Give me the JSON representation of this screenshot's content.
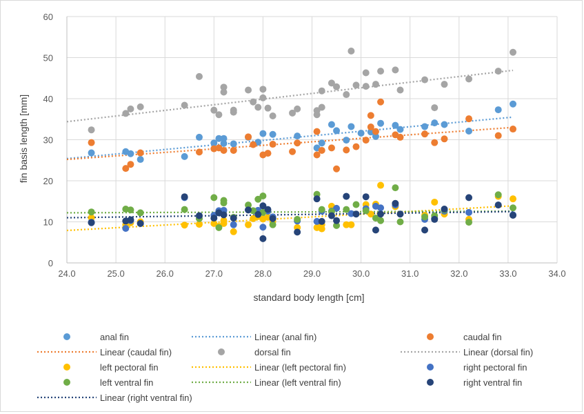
{
  "chart_data": {
    "type": "scatter",
    "title": "",
    "xlabel": "standard body length [cm]",
    "ylabel": "fin basis length [mm]",
    "xlim": [
      24.0,
      34.0
    ],
    "ylim": [
      0,
      60
    ],
    "xticks": [
      "24.0",
      "25.0",
      "26.0",
      "27.0",
      "28.0",
      "29.0",
      "30.0",
      "31.0",
      "32.0",
      "33.0",
      "34.0"
    ],
    "yticks": [
      "0",
      "10",
      "20",
      "30",
      "40",
      "50",
      "60"
    ],
    "grid": true,
    "legend_position": "bottom",
    "series": [
      {
        "name": "anal fin",
        "color": "#5b9bd5",
        "points": [
          [
            24.5,
            26.8
          ],
          [
            25.2,
            27.1
          ],
          [
            25.3,
            26.6
          ],
          [
            25.5,
            25.2
          ],
          [
            26.4,
            25.9
          ],
          [
            26.7,
            30.6
          ],
          [
            27.0,
            29.2
          ],
          [
            27.1,
            30.3
          ],
          [
            27.2,
            30.3
          ],
          [
            27.2,
            29.1
          ],
          [
            27.4,
            29.0
          ],
          [
            27.7,
            30.6
          ],
          [
            27.9,
            29.4
          ],
          [
            28.0,
            31.5
          ],
          [
            28.2,
            31.3
          ],
          [
            28.7,
            30.9
          ],
          [
            29.1,
            28.0
          ],
          [
            29.2,
            29.2
          ],
          [
            29.4,
            33.7
          ],
          [
            29.5,
            32.2
          ],
          [
            29.7,
            29.9
          ],
          [
            29.8,
            33.2
          ],
          [
            30.0,
            31.6
          ],
          [
            30.2,
            31.9
          ],
          [
            30.3,
            30.8
          ],
          [
            30.4,
            34.0
          ],
          [
            30.7,
            33.5
          ],
          [
            30.8,
            32.5
          ],
          [
            31.3,
            33.2
          ],
          [
            31.5,
            34.1
          ],
          [
            31.7,
            33.7
          ],
          [
            32.2,
            32.1
          ],
          [
            32.8,
            37.3
          ],
          [
            33.1,
            38.7
          ]
        ]
      },
      {
        "name": "caudal fin",
        "color": "#ed7d31",
        "points": [
          [
            24.5,
            29.3
          ],
          [
            25.2,
            23.0
          ],
          [
            25.3,
            24.0
          ],
          [
            25.5,
            26.8
          ],
          [
            26.7,
            27.0
          ],
          [
            27.0,
            27.8
          ],
          [
            27.1,
            28.0
          ],
          [
            27.2,
            27.4
          ],
          [
            27.4,
            27.4
          ],
          [
            27.7,
            30.7
          ],
          [
            27.8,
            28.8
          ],
          [
            28.0,
            26.3
          ],
          [
            28.1,
            26.7
          ],
          [
            28.2,
            28.9
          ],
          [
            28.6,
            27.1
          ],
          [
            28.7,
            29.2
          ],
          [
            29.1,
            32.0
          ],
          [
            29.1,
            26.3
          ],
          [
            29.2,
            27.4
          ],
          [
            29.4,
            28.0
          ],
          [
            29.5,
            22.9
          ],
          [
            29.7,
            27.5
          ],
          [
            29.9,
            28.3
          ],
          [
            30.1,
            29.9
          ],
          [
            30.2,
            35.9
          ],
          [
            30.2,
            33.1
          ],
          [
            30.3,
            32.0
          ],
          [
            30.4,
            39.2
          ],
          [
            30.7,
            31.2
          ],
          [
            30.8,
            30.6
          ],
          [
            31.3,
            31.4
          ],
          [
            31.5,
            29.3
          ],
          [
            31.7,
            30.2
          ],
          [
            32.2,
            35.1
          ],
          [
            32.8,
            31.0
          ],
          [
            33.1,
            32.6
          ]
        ]
      },
      {
        "name": "dorsal fin",
        "color": "#a5a5a5",
        "points": [
          [
            24.5,
            32.4
          ],
          [
            25.2,
            36.4
          ],
          [
            25.3,
            37.5
          ],
          [
            25.5,
            38.0
          ],
          [
            26.4,
            38.4
          ],
          [
            26.7,
            45.4
          ],
          [
            27.0,
            37.2
          ],
          [
            27.1,
            36.1
          ],
          [
            27.2,
            42.8
          ],
          [
            27.2,
            41.6
          ],
          [
            27.4,
            37.2
          ],
          [
            27.4,
            36.7
          ],
          [
            27.7,
            42.1
          ],
          [
            27.8,
            39.2
          ],
          [
            27.9,
            37.9
          ],
          [
            28.0,
            42.3
          ],
          [
            28.0,
            40.2
          ],
          [
            28.1,
            37.7
          ],
          [
            28.2,
            35.8
          ],
          [
            28.6,
            36.5
          ],
          [
            28.7,
            37.5
          ],
          [
            29.1,
            36.1
          ],
          [
            29.1,
            37.1
          ],
          [
            29.2,
            41.9
          ],
          [
            29.2,
            37.9
          ],
          [
            29.4,
            43.8
          ],
          [
            29.5,
            42.9
          ],
          [
            29.7,
            41.0
          ],
          [
            29.8,
            51.6
          ],
          [
            29.9,
            43.3
          ],
          [
            30.1,
            46.3
          ],
          [
            30.1,
            43.0
          ],
          [
            30.3,
            43.5
          ],
          [
            30.4,
            46.7
          ],
          [
            30.7,
            47.0
          ],
          [
            30.8,
            42.1
          ],
          [
            31.3,
            44.6
          ],
          [
            31.5,
            37.8
          ],
          [
            31.7,
            43.5
          ],
          [
            32.2,
            44.8
          ],
          [
            32.8,
            46.7
          ],
          [
            33.1,
            51.3
          ]
        ]
      },
      {
        "name": "left pectoral fin",
        "color": "#ffc000",
        "points": [
          [
            24.5,
            11.0
          ],
          [
            25.2,
            9.3
          ],
          [
            25.3,
            9.8
          ],
          [
            25.5,
            10.0
          ],
          [
            26.4,
            9.2
          ],
          [
            26.7,
            9.4
          ],
          [
            27.0,
            9.6
          ],
          [
            27.1,
            8.9
          ],
          [
            27.2,
            9.6
          ],
          [
            27.2,
            10.3
          ],
          [
            27.4,
            7.6
          ],
          [
            27.7,
            9.3
          ],
          [
            27.8,
            10.8
          ],
          [
            27.9,
            11.3
          ],
          [
            28.0,
            10.7
          ],
          [
            28.1,
            11.1
          ],
          [
            28.2,
            10.1
          ],
          [
            28.7,
            8.6
          ],
          [
            29.1,
            8.6
          ],
          [
            29.2,
            8.3
          ],
          [
            29.2,
            9.3
          ],
          [
            29.4,
            13.8
          ],
          [
            29.7,
            9.3
          ],
          [
            29.8,
            9.3
          ],
          [
            30.1,
            14.2
          ],
          [
            30.2,
            11.9
          ],
          [
            30.3,
            14.3
          ],
          [
            30.4,
            18.9
          ],
          [
            30.7,
            13.7
          ],
          [
            31.3,
            11.6
          ],
          [
            31.5,
            14.8
          ],
          [
            31.7,
            11.9
          ],
          [
            32.2,
            10.6
          ],
          [
            32.8,
            16.2
          ],
          [
            33.1,
            15.6
          ]
        ]
      },
      {
        "name": "right pectoral fin",
        "color": "#4472c4",
        "points": [
          [
            24.5,
            9.9
          ],
          [
            25.2,
            8.4
          ],
          [
            25.3,
            10.3
          ],
          [
            25.5,
            9.6
          ],
          [
            26.4,
            15.9
          ],
          [
            26.7,
            10.8
          ],
          [
            27.0,
            11.6
          ],
          [
            27.1,
            12.7
          ],
          [
            27.2,
            12.8
          ],
          [
            27.4,
            9.3
          ],
          [
            27.7,
            12.9
          ],
          [
            27.9,
            12.8
          ],
          [
            28.0,
            8.7
          ],
          [
            28.1,
            12.6
          ],
          [
            28.2,
            11.2
          ],
          [
            28.7,
            10.2
          ],
          [
            29.1,
            10.1
          ],
          [
            29.2,
            12.6
          ],
          [
            29.4,
            12.6
          ],
          [
            29.5,
            13.3
          ],
          [
            29.7,
            16.2
          ],
          [
            29.8,
            12.0
          ],
          [
            30.1,
            13.2
          ],
          [
            30.3,
            13.8
          ],
          [
            30.4,
            13.4
          ],
          [
            30.7,
            14.1
          ],
          [
            31.3,
            10.6
          ],
          [
            31.5,
            10.9
          ],
          [
            31.7,
            12.6
          ],
          [
            32.2,
            12.3
          ],
          [
            32.8,
            14.1
          ],
          [
            33.1,
            11.7
          ]
        ]
      },
      {
        "name": "left ventral fin",
        "color": "#70ad47",
        "points": [
          [
            24.5,
            12.4
          ],
          [
            25.2,
            13.1
          ],
          [
            25.3,
            12.9
          ],
          [
            25.5,
            12.2
          ],
          [
            26.4,
            13.0
          ],
          [
            26.7,
            10.8
          ],
          [
            27.0,
            15.9
          ],
          [
            27.1,
            8.6
          ],
          [
            27.2,
            15.2
          ],
          [
            27.2,
            14.6
          ],
          [
            27.4,
            11.1
          ],
          [
            27.7,
            14.1
          ],
          [
            27.8,
            12.7
          ],
          [
            27.9,
            15.5
          ],
          [
            28.0,
            16.3
          ],
          [
            28.0,
            12.3
          ],
          [
            28.2,
            9.3
          ],
          [
            28.7,
            10.6
          ],
          [
            29.1,
            16.7
          ],
          [
            29.2,
            13.0
          ],
          [
            29.4,
            12.5
          ],
          [
            29.5,
            9.1
          ],
          [
            29.7,
            13.0
          ],
          [
            29.9,
            14.2
          ],
          [
            30.1,
            12.7
          ],
          [
            30.3,
            10.9
          ],
          [
            30.4,
            10.3
          ],
          [
            30.7,
            18.3
          ],
          [
            30.8,
            10.0
          ],
          [
            31.3,
            11.2
          ],
          [
            31.5,
            11.5
          ],
          [
            31.7,
            12.9
          ],
          [
            32.2,
            9.9
          ],
          [
            32.8,
            16.6
          ],
          [
            33.1,
            13.4
          ]
        ]
      },
      {
        "name": "right ventral fin",
        "color": "#264478",
        "points": [
          [
            24.5,
            9.8
          ],
          [
            25.2,
            10.2
          ],
          [
            25.3,
            10.5
          ],
          [
            25.5,
            9.6
          ],
          [
            26.4,
            16.1
          ],
          [
            26.7,
            11.5
          ],
          [
            27.0,
            10.9
          ],
          [
            27.1,
            12.2
          ],
          [
            27.2,
            11.7
          ],
          [
            27.4,
            10.9
          ],
          [
            27.7,
            12.9
          ],
          [
            27.9,
            11.8
          ],
          [
            28.0,
            13.9
          ],
          [
            28.0,
            5.9
          ],
          [
            28.1,
            13.0
          ],
          [
            28.2,
            10.8
          ],
          [
            28.7,
            7.5
          ],
          [
            29.1,
            15.6
          ],
          [
            29.2,
            10.1
          ],
          [
            29.4,
            11.5
          ],
          [
            29.5,
            10.3
          ],
          [
            29.7,
            16.2
          ],
          [
            29.9,
            11.9
          ],
          [
            30.1,
            16.1
          ],
          [
            30.3,
            8.0
          ],
          [
            30.4,
            11.9
          ],
          [
            30.7,
            14.5
          ],
          [
            30.8,
            11.9
          ],
          [
            31.3,
            8.0
          ],
          [
            31.5,
            10.6
          ],
          [
            31.7,
            13.1
          ],
          [
            32.2,
            15.9
          ],
          [
            32.8,
            14.1
          ],
          [
            33.1,
            11.6
          ]
        ]
      }
    ],
    "trendlines": [
      {
        "name": "Linear (anal fin)",
        "color": "#5b9bd5",
        "x": [
          24.0,
          33.1
        ],
        "y": [
          25.4,
          35.5
        ]
      },
      {
        "name": "Linear (caudal fin)",
        "color": "#ed7d31",
        "x": [
          24.0,
          33.1
        ],
        "y": [
          25.2,
          33.0
        ]
      },
      {
        "name": "Linear (dorsal fin)",
        "color": "#a5a5a5",
        "x": [
          24.0,
          33.1
        ],
        "y": [
          34.4,
          46.9
        ]
      },
      {
        "name": "Linear (left pectoral fin)",
        "color": "#ffc000",
        "x": [
          24.0,
          33.1
        ],
        "y": [
          7.9,
          13.9
        ]
      },
      {
        "name": "Linear (left ventral fin)",
        "color": "#70ad47",
        "x": [
          24.0,
          33.1
        ],
        "y": [
          12.2,
          12.6
        ]
      },
      {
        "name": "Linear (right ventral fin)",
        "color": "#264478",
        "x": [
          24.0,
          33.1
        ],
        "y": [
          11.0,
          12.5
        ]
      }
    ],
    "legend": [
      {
        "label": "anal fin",
        "kind": "marker",
        "color": "#5b9bd5"
      },
      {
        "label": "Linear (anal fin)",
        "kind": "line",
        "color": "#5b9bd5"
      },
      {
        "label": "caudal fin",
        "kind": "marker",
        "color": "#ed7d31"
      },
      {
        "label": "Linear (caudal fin)",
        "kind": "line",
        "color": "#ed7d31"
      },
      {
        "label": "dorsal fin",
        "kind": "marker",
        "color": "#a5a5a5"
      },
      {
        "label": "Linear (dorsal fin)",
        "kind": "line",
        "color": "#a5a5a5"
      },
      {
        "label": "left pectoral fin",
        "kind": "marker",
        "color": "#ffc000"
      },
      {
        "label": "Linear (left pectoral fin)",
        "kind": "line",
        "color": "#ffc000"
      },
      {
        "label": "right pectoral fin",
        "kind": "marker",
        "color": "#4472c4"
      },
      {
        "label": "left ventral fin",
        "kind": "marker",
        "color": "#70ad47"
      },
      {
        "label": "Linear (left ventral fin)",
        "kind": "line",
        "color": "#70ad47"
      },
      {
        "label": "right ventral fin",
        "kind": "marker",
        "color": "#264478"
      },
      {
        "label": "Linear (right ventral fin)",
        "kind": "line",
        "color": "#264478"
      }
    ]
  }
}
